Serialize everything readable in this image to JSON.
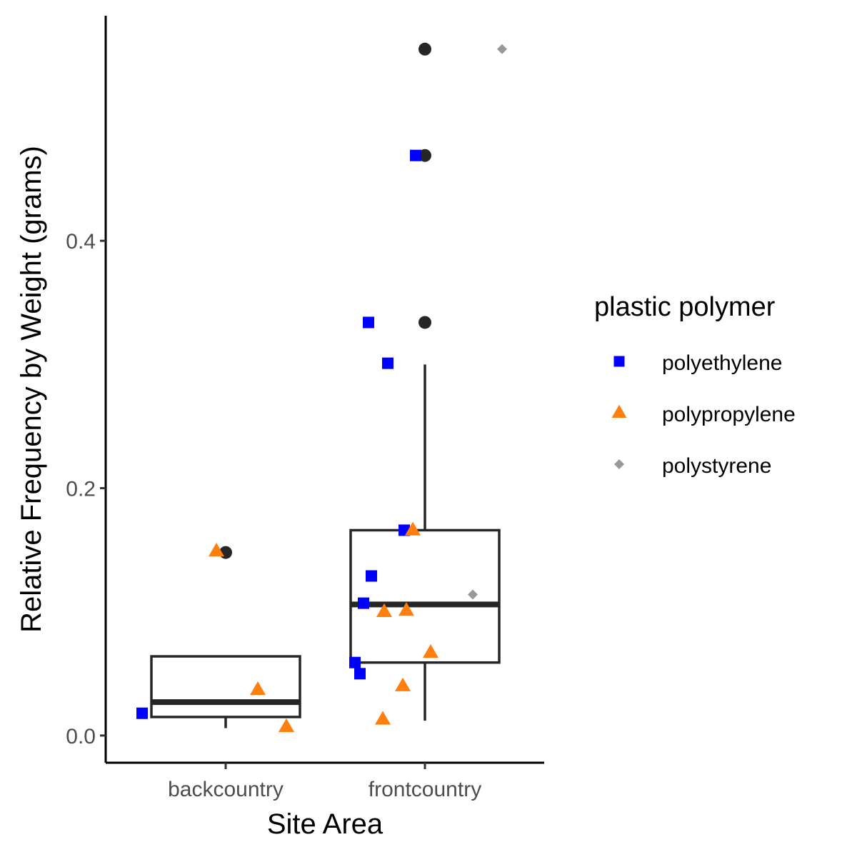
{
  "chart_data": {
    "type": "box",
    "xlabel": "Site Area",
    "ylabel": "Relative Frequency by Weight (grams)",
    "categories": [
      "backcountry",
      "frontcountry"
    ],
    "ylim": [
      -0.022,
      0.582
    ],
    "yticks": [
      0.0,
      0.2,
      0.4
    ],
    "ytick_labels": [
      "0.0",
      "0.2",
      "0.4"
    ],
    "grid": false,
    "legend": {
      "title": "plastic polymer",
      "placement": "right",
      "entries": [
        {
          "label": "polyethylene",
          "shape": "square",
          "color": "#0000ff"
        },
        {
          "label": "polypropylene",
          "shape": "triangle",
          "color": "#ff7f0e"
        },
        {
          "label": "polystyrene",
          "shape": "diamond",
          "color": "#999999"
        }
      ]
    },
    "boxes": [
      {
        "category": "backcountry",
        "min": 0.006,
        "q1": 0.015,
        "median": 0.027,
        "q3": 0.064,
        "max": 0.064,
        "outliers": [
          0.148
        ]
      },
      {
        "category": "frontcountry",
        "min": 0.012,
        "q1": 0.059,
        "median": 0.106,
        "q3": 0.166,
        "max": 0.3,
        "outliers": [
          0.334,
          0.469,
          0.555
        ]
      }
    ],
    "series": [
      {
        "name": "polyethylene",
        "color": "#0000ff",
        "shape": "square",
        "points": [
          {
            "category": "backcountry",
            "y": 0.018
          },
          {
            "category": "frontcountry",
            "y": 0.334
          },
          {
            "category": "frontcountry",
            "y": 0.301
          },
          {
            "category": "frontcountry",
            "y": 0.469
          },
          {
            "category": "frontcountry",
            "y": 0.166
          },
          {
            "category": "frontcountry",
            "y": 0.129
          },
          {
            "category": "frontcountry",
            "y": 0.107
          },
          {
            "category": "frontcountry",
            "y": 0.059
          },
          {
            "category": "frontcountry",
            "y": 0.05
          }
        ]
      },
      {
        "name": "polypropylene",
        "color": "#ff7f0e",
        "shape": "triangle",
        "points": [
          {
            "category": "backcountry",
            "y": 0.149
          },
          {
            "category": "backcountry",
            "y": 0.037
          },
          {
            "category": "backcountry",
            "y": 0.007
          },
          {
            "category": "frontcountry",
            "y": 0.166
          },
          {
            "category": "frontcountry",
            "y": 0.1
          },
          {
            "category": "frontcountry",
            "y": 0.101
          },
          {
            "category": "frontcountry",
            "y": 0.067
          },
          {
            "category": "frontcountry",
            "y": 0.04
          },
          {
            "category": "frontcountry",
            "y": 0.013
          }
        ]
      },
      {
        "name": "polystyrene",
        "color": "#999999",
        "shape": "diamond",
        "points": [
          {
            "category": "frontcountry",
            "y": 0.555
          },
          {
            "category": "frontcountry",
            "y": 0.114
          }
        ]
      }
    ],
    "box_style": {
      "stroke": "#262626",
      "outlier_color": "#262626"
    }
  }
}
